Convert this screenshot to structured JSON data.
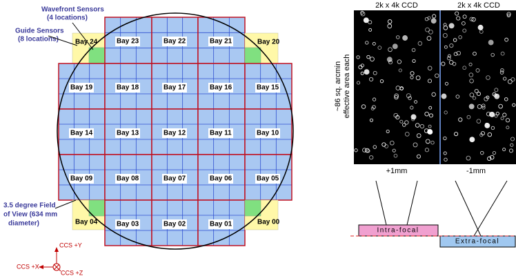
{
  "annotations": {
    "wavefront": [
      "Wavefront Sensors",
      "(4 locations)"
    ],
    "guide": [
      "Guide Sensors",
      "(8 locations)"
    ],
    "fov": [
      "3.5 degree Field",
      "of View (634 mm",
      "diameter)"
    ]
  },
  "axes": {
    "y": "CCS +Y",
    "x": "CCS +X",
    "z": "CCS +Z"
  },
  "bays": [
    [
      "Bay 24",
      "Bay 23",
      "Bay 22",
      "Bay 21",
      "Bay 20"
    ],
    [
      "Bay 19",
      "Bay 18",
      "Bay 17",
      "Bay 16",
      "Bay 15"
    ],
    [
      "Bay 14",
      "Bay 13",
      "Bay 12",
      "Bay 11",
      "Bay 10"
    ],
    [
      "Bay 09",
      "Bay 08",
      "Bay 07",
      "Bay 06",
      "Bay 05"
    ],
    [
      "Bay 04",
      "Bay 03",
      "Bay 02",
      "Bay 01",
      "Bay 00"
    ]
  ],
  "ccd": {
    "left_title": "2k x 4k CCD",
    "right_title": "2k x 4k CCD",
    "area": [
      "~86 sq. arcmin",
      "effective area each"
    ],
    "left_focus": "+1mm",
    "right_focus": "-1mm",
    "intra": "Intra-focal",
    "extra": "Extra-focal"
  }
}
